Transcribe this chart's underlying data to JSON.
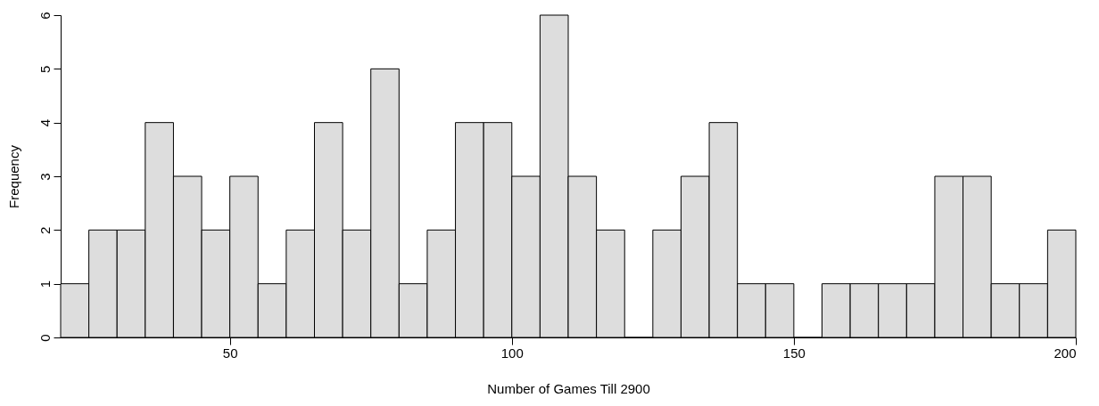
{
  "chart_data": {
    "type": "histogram",
    "xlabel": "Number of Games Till 2900",
    "ylabel": "Frequency",
    "bins": [
      20,
      25,
      30,
      35,
      40,
      45,
      50,
      55,
      60,
      65,
      70,
      75,
      80,
      85,
      90,
      95,
      100,
      105,
      110,
      115,
      120,
      125,
      130,
      135,
      140,
      145,
      150,
      155,
      160,
      165,
      170,
      175,
      180,
      185,
      190,
      195,
      200
    ],
    "values": [
      1,
      2,
      2,
      4,
      3,
      2,
      3,
      1,
      2,
      4,
      2,
      5,
      1,
      2,
      4,
      4,
      3,
      6,
      3,
      2,
      0,
      2,
      3,
      4,
      1,
      1,
      0,
      1,
      1,
      1,
      1,
      3,
      3,
      1,
      1,
      2
    ],
    "color": "#dddddd",
    "xlim": [
      20,
      200
    ],
    "xticks": [
      50,
      100,
      150,
      200
    ],
    "ylim": [
      0,
      6
    ],
    "yticks": [
      0,
      1,
      2,
      3,
      4,
      5,
      6
    ],
    "grid": false
  }
}
